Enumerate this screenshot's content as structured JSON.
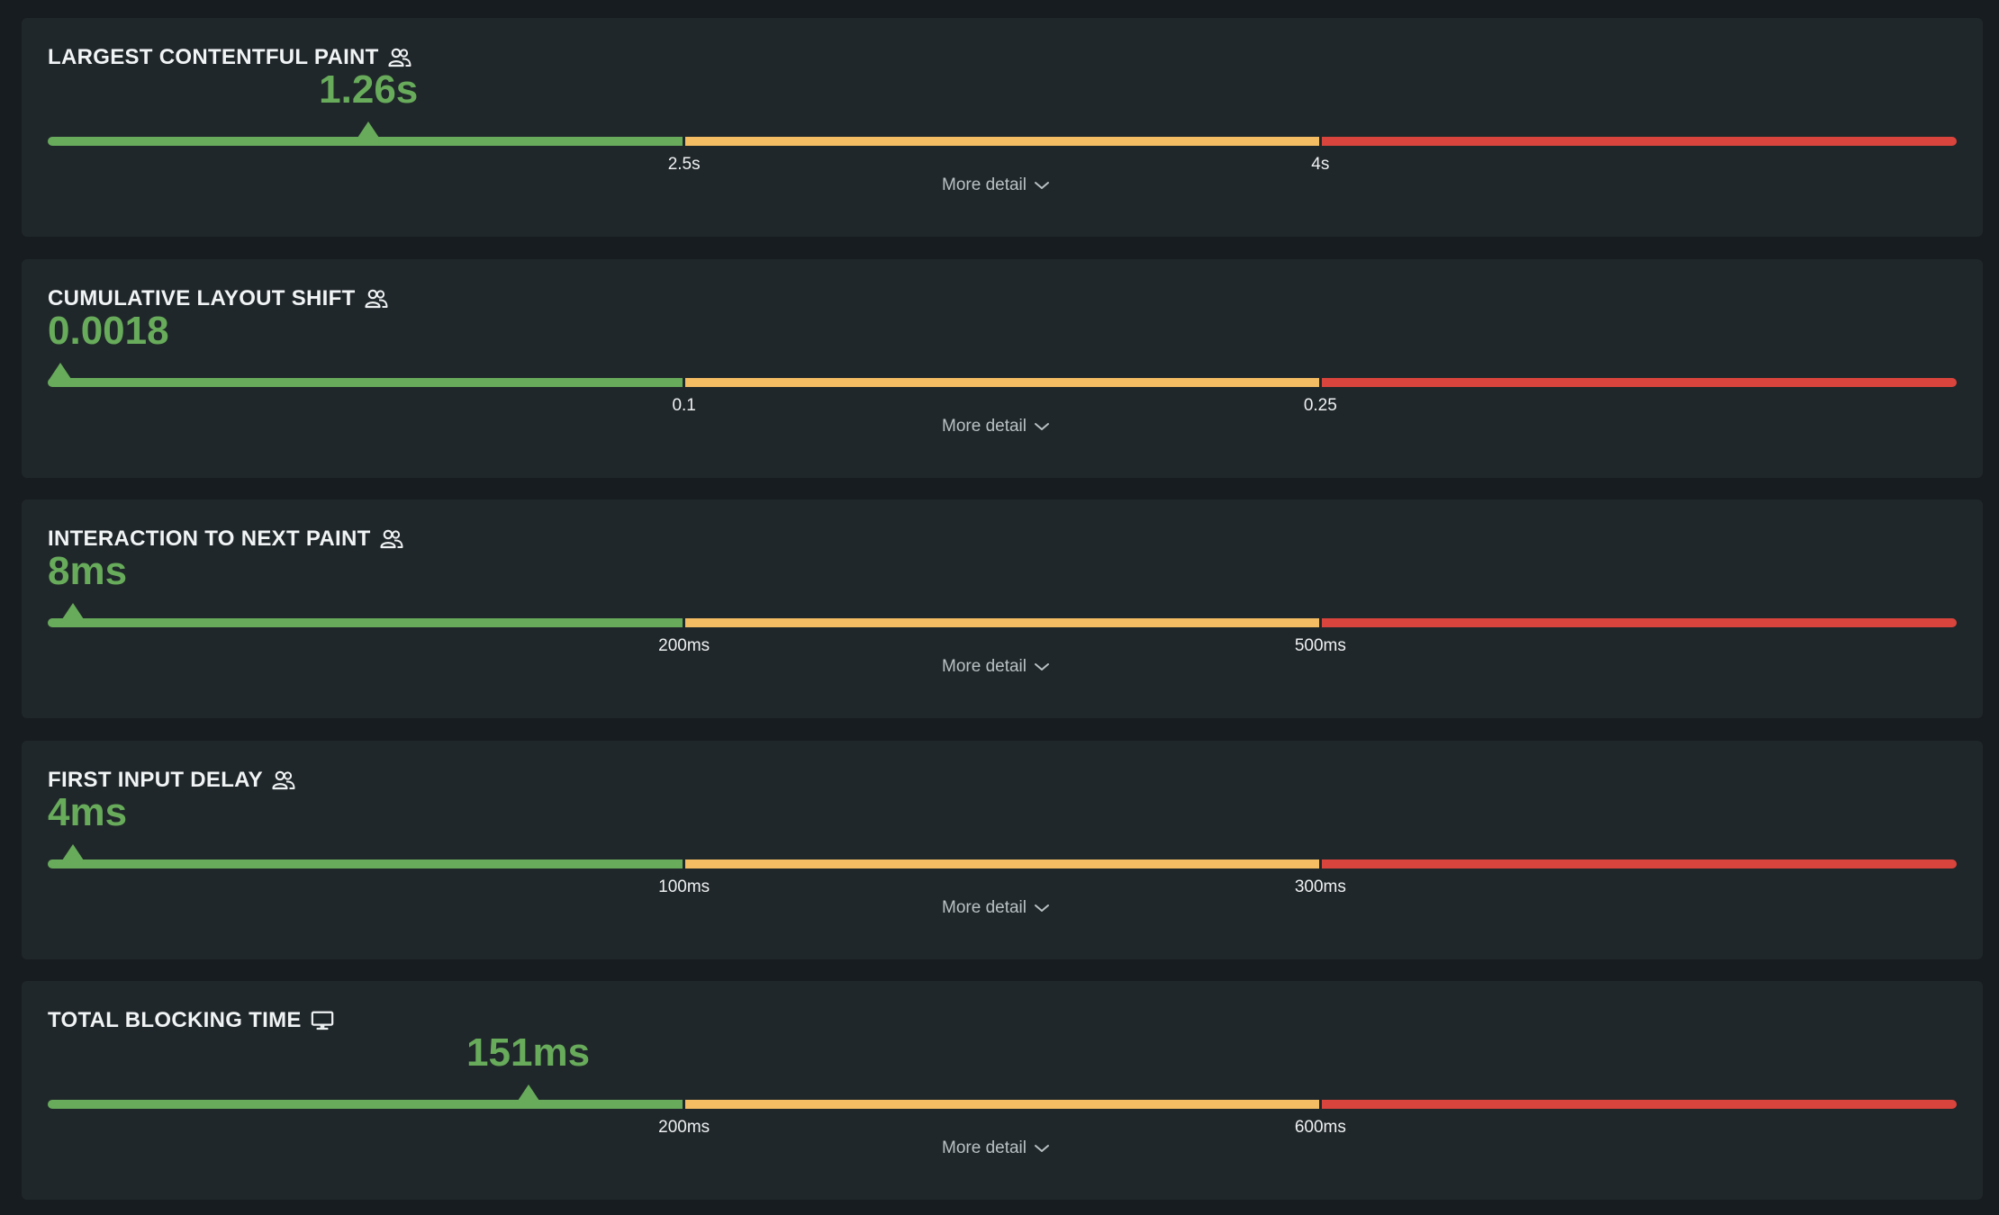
{
  "colors": {
    "good": "#67ab5b",
    "needs_improvement": "#f4bd64",
    "poor": "#d9443c",
    "card_background": "#20272a",
    "page_background": "#161c1f"
  },
  "more_detail_label": "More detail",
  "metrics": [
    {
      "title": "LARGEST CONTENTFUL PAINT",
      "icon": "users-icon",
      "value_label": "1.26s",
      "value": 1.26,
      "thresholds": [
        2.5,
        4
      ],
      "threshold_labels": [
        "2.5s",
        "4s"
      ],
      "rating": "good"
    },
    {
      "title": "CUMULATIVE LAYOUT SHIFT",
      "icon": "users-icon",
      "value_label": "0.0018",
      "value": 0.0018,
      "thresholds": [
        0.1,
        0.25
      ],
      "threshold_labels": [
        "0.1",
        "0.25"
      ],
      "rating": "good"
    },
    {
      "title": "INTERACTION TO NEXT PAINT",
      "icon": "users-icon",
      "value_label": "8ms",
      "value": 8,
      "thresholds": [
        200,
        500
      ],
      "threshold_labels": [
        "200ms",
        "500ms"
      ],
      "rating": "good"
    },
    {
      "title": "FIRST INPUT DELAY",
      "icon": "users-icon",
      "value_label": "4ms",
      "value": 4,
      "thresholds": [
        100,
        300
      ],
      "threshold_labels": [
        "100ms",
        "300ms"
      ],
      "rating": "good"
    },
    {
      "title": "TOTAL BLOCKING TIME",
      "icon": "desktop-icon",
      "value_label": "151ms",
      "value": 151,
      "thresholds": [
        200,
        600
      ],
      "threshold_labels": [
        "200ms",
        "600ms"
      ],
      "rating": "good"
    }
  ]
}
